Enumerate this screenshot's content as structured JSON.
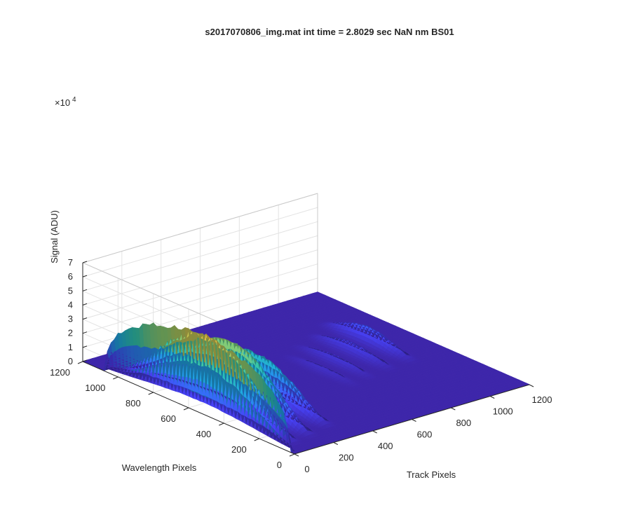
{
  "chart_data": {
    "type": "surface",
    "title": "s2017070806_img.mat int time = 2.8029 sec  NaN nm BS01",
    "xlabel": "Track Pixels",
    "ylabel": "Wavelength Pixels",
    "zlabel": "Signal (ADU)",
    "z_exponent_label": "×10",
    "z_exponent_power": "4",
    "xlim": [
      0,
      1200
    ],
    "ylim": [
      0,
      1200
    ],
    "zlim": [
      0,
      70000
    ],
    "x_ticks": [
      "0",
      "200",
      "400",
      "600",
      "800",
      "1000",
      "1200"
    ],
    "y_ticks": [
      "0",
      "200",
      "400",
      "600",
      "800",
      "1000",
      "1200"
    ],
    "z_ticks": [
      "0",
      "1",
      "2",
      "3",
      "4",
      "5",
      "6",
      "7"
    ],
    "grid": true,
    "colormap": [
      "#3e26a8",
      "#4743f8",
      "#2f7cf7",
      "#1ea8e0",
      "#2ec4b0",
      "#8ecc6e",
      "#f1b93a",
      "#f9fb15"
    ],
    "features": [
      {
        "track_center": 0,
        "track_width": 12,
        "wavelength_range": [
          30,
          1070
        ],
        "peak_signal": 58000
      },
      {
        "track_center": 70,
        "track_width": 30,
        "wavelength_range": [
          60,
          1060
        ],
        "peak_signal": 50000
      },
      {
        "track_center": 170,
        "track_width": 30,
        "wavelength_range": [
          80,
          1020
        ],
        "peak_signal": 43000
      },
      {
        "track_center": 290,
        "track_width": 30,
        "wavelength_range": [
          110,
          960
        ],
        "peak_signal": 30000
      },
      {
        "track_center": 660,
        "track_width": 25,
        "wavelength_range": [
          350,
          800
        ],
        "peak_signal": 3000
      },
      {
        "track_center": 760,
        "track_width": 25,
        "wavelength_range": [
          380,
          850
        ],
        "peak_signal": 5000
      },
      {
        "track_center": 880,
        "track_width": 28,
        "wavelength_range": [
          400,
          900
        ],
        "peak_signal": 7000
      },
      {
        "track_center": 1000,
        "track_width": 30,
        "wavelength_range": [
          420,
          960
        ],
        "peak_signal": 11000
      }
    ]
  }
}
